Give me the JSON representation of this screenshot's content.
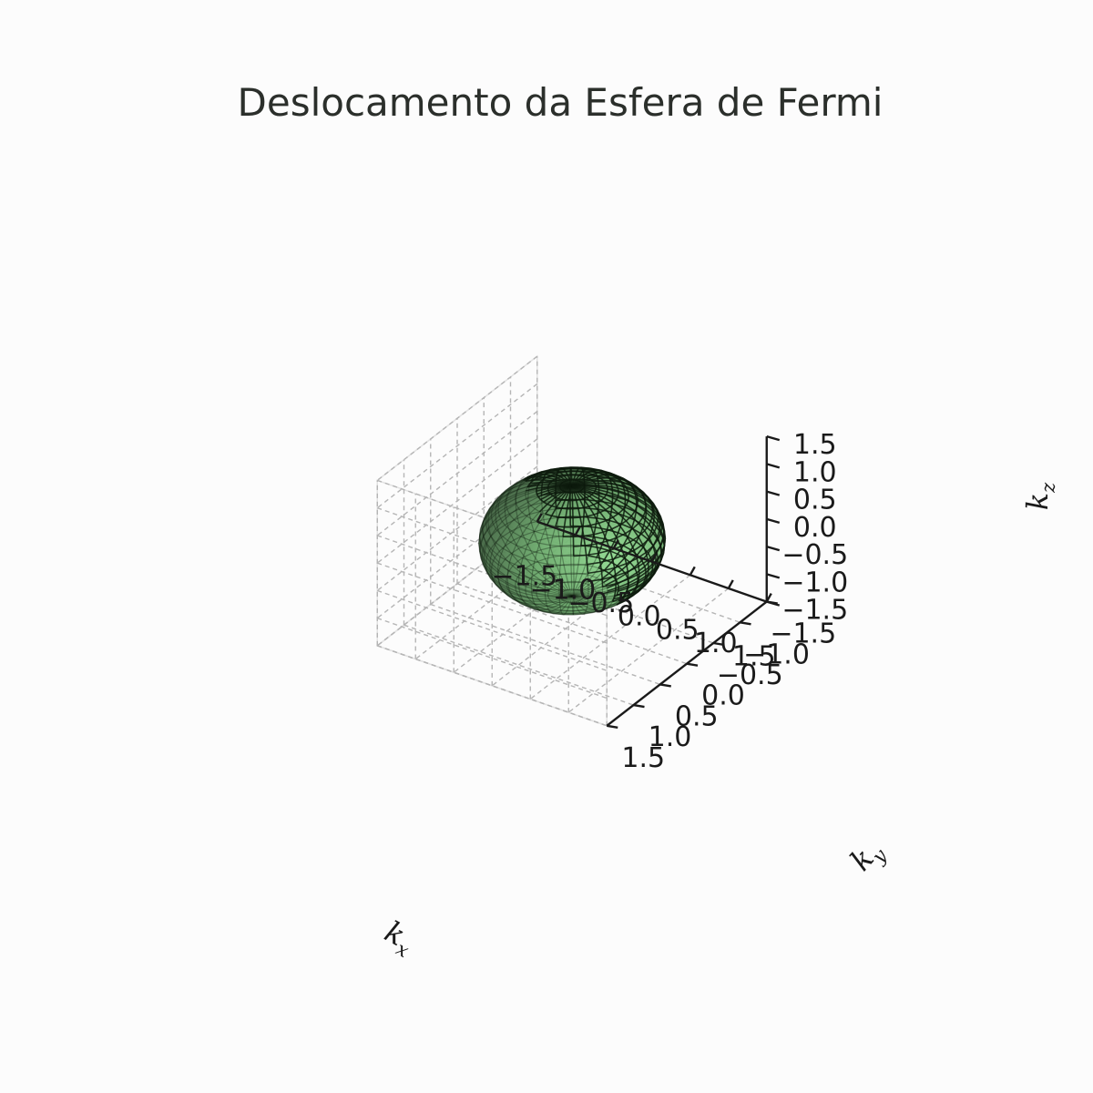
{
  "chart_data": {
    "type": "surface3d",
    "title": "Deslocamento da Esfera de Fermi",
    "xlabel": "k",
    "xlabel_sub": "x",
    "ylabel": "k",
    "ylabel_sub": "y",
    "zlabel": "k",
    "zlabel_sub": "z",
    "xlim": [
      -1.5,
      1.5
    ],
    "ylim": [
      -1.5,
      1.5
    ],
    "zlim": [
      -1.5,
      1.5
    ],
    "xticks": [
      "−1.5",
      "−1.0",
      "−0.5",
      "0.0",
      "0.5",
      "1.0",
      "1.5"
    ],
    "yticks": [
      "−1.5",
      "−1.0",
      "−0.5",
      "0.0",
      "0.5",
      "1.0",
      "1.5"
    ],
    "zticks": [
      "−1.5",
      "−1.0",
      "−0.5",
      "0.0",
      "0.5",
      "1.0",
      "1.5"
    ],
    "surface": {
      "shape": "sphere",
      "center": [
        0.0,
        0.0,
        0.0
      ],
      "radius": 1.0,
      "color": "#7fcf7f",
      "edge_color": "#0d1a0d",
      "alpha": 0.55
    },
    "grid": true,
    "colors": {
      "background": "#fcfcfc",
      "text": "#2b2f2b"
    }
  }
}
